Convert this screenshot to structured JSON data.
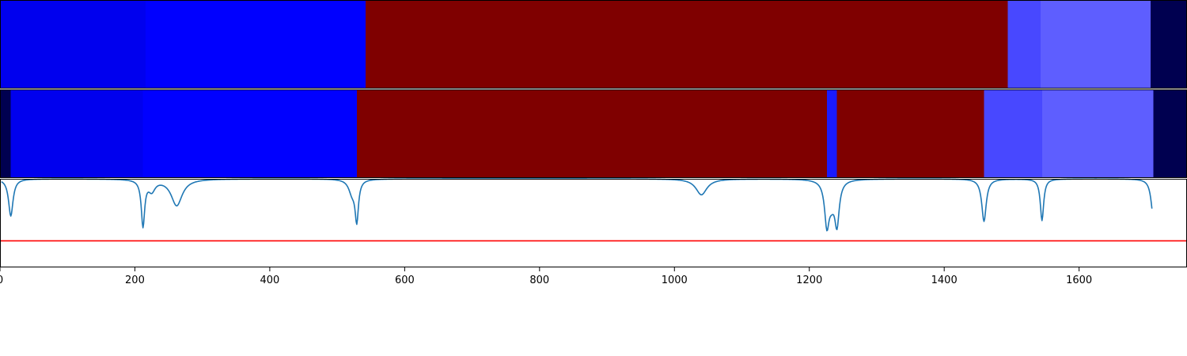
{
  "chart_data": {
    "type": "heatmap",
    "x_range": [
      0,
      1760
    ],
    "xticks": [
      0,
      200,
      400,
      600,
      800,
      1000,
      1200,
      1400,
      1600
    ],
    "xtick_labels": [
      "0",
      "200",
      "400",
      "600",
      "800",
      "1000",
      "1200",
      "1400",
      "1600"
    ],
    "grid": false,
    "panels": [
      {
        "name": "",
        "kind": "segments",
        "segments": [
          {
            "start": 0,
            "end": 216,
            "color": "#0000ee"
          },
          {
            "start": 216,
            "end": 542,
            "color": "#0000ff"
          },
          {
            "start": 542,
            "end": 1494,
            "color": "#7f0000"
          },
          {
            "start": 1494,
            "end": 1543,
            "color": "#4848ff"
          },
          {
            "start": 1543,
            "end": 1706,
            "color": "#5e5eff"
          },
          {
            "start": 1706,
            "end": 1760,
            "color": "#000050"
          }
        ]
      },
      {
        "name": "",
        "kind": "segments",
        "segments": [
          {
            "start": 0,
            "end": 16,
            "color": "#000050"
          },
          {
            "start": 16,
            "end": 212,
            "color": "#0000ee"
          },
          {
            "start": 212,
            "end": 529,
            "color": "#0000ff"
          },
          {
            "start": 529,
            "end": 1226,
            "color": "#7f0000"
          },
          {
            "start": 1226,
            "end": 1241,
            "color": "#1a1aff"
          },
          {
            "start": 1241,
            "end": 1459,
            "color": "#7f0000"
          },
          {
            "start": 1459,
            "end": 1545,
            "color": "#4848ff"
          },
          {
            "start": 1545,
            "end": 1710,
            "color": "#5e5eff"
          },
          {
            "start": 1710,
            "end": 1760,
            "color": "#000050"
          }
        ]
      },
      {
        "name": "",
        "kind": "line",
        "line_color": "#1f77b4",
        "threshold": 0.3,
        "threshold_color": "#ff0000",
        "y_range": [
          0,
          1
        ],
        "baseline": 1.0,
        "dips": [
          {
            "x": 16,
            "depth": 0.42,
            "width": 4
          },
          {
            "x": 212,
            "depth": 0.52,
            "width": 3
          },
          {
            "x": 225,
            "depth": 0.12,
            "width": 6
          },
          {
            "x": 262,
            "depth": 0.3,
            "width": 10
          },
          {
            "x": 522,
            "depth": 0.15,
            "width": 6
          },
          {
            "x": 529,
            "depth": 0.45,
            "width": 3
          },
          {
            "x": 1040,
            "depth": 0.18,
            "width": 10
          },
          {
            "x": 1226,
            "depth": 0.47,
            "width": 4
          },
          {
            "x": 1233,
            "depth": 0.2,
            "width": 6
          },
          {
            "x": 1241,
            "depth": 0.47,
            "width": 4
          },
          {
            "x": 1459,
            "depth": 0.48,
            "width": 4
          },
          {
            "x": 1545,
            "depth": 0.47,
            "width": 3
          },
          {
            "x": 1710,
            "depth": 0.42,
            "width": 4
          }
        ]
      }
    ]
  }
}
